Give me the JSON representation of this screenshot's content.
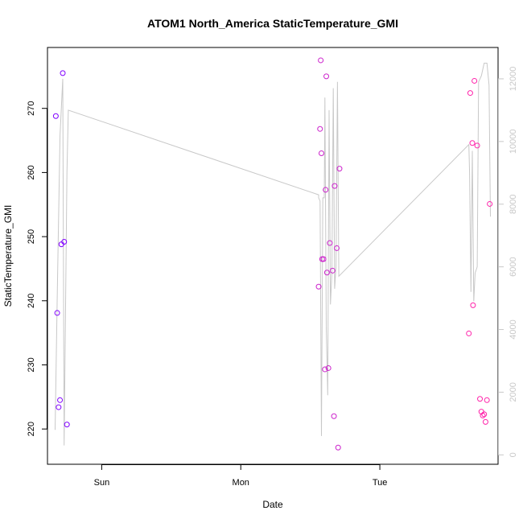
{
  "chart_data": {
    "type": "scatter",
    "title": "ATOM1 North_America StaticTemperature_GMI",
    "xlabel": "Date",
    "ylabel": "StaticTemperature_GMI",
    "x_ticks": [
      {
        "label": "Sun",
        "value": 0
      },
      {
        "label": "Mon",
        "value": 1
      },
      {
        "label": "Tue",
        "value": 2
      }
    ],
    "xlim": [
      -0.39,
      2.85
    ],
    "ylim": [
      214.5,
      279.5
    ],
    "y_ticks": [
      220,
      230,
      240,
      250,
      260,
      270
    ],
    "y2lim": [
      -300,
      13000
    ],
    "y2_ticks": [
      0,
      2000,
      4000,
      6000,
      8000,
      10000,
      12000
    ],
    "series": [
      {
        "kind": "points",
        "color": "#8000ff",
        "points": [
          {
            "x": -0.33,
            "y": 268.8
          },
          {
            "x": -0.32,
            "y": 238.1
          },
          {
            "x": -0.31,
            "y": 223.4
          },
          {
            "x": -0.3,
            "y": 224.5
          },
          {
            "x": -0.29,
            "y": 248.8
          },
          {
            "x": -0.28,
            "y": 275.5
          },
          {
            "x": -0.27,
            "y": 249.2
          },
          {
            "x": -0.25,
            "y": 220.7
          }
        ]
      },
      {
        "kind": "points",
        "color": "#cc22cc",
        "points": [
          {
            "x": 1.56,
            "y": 242.2
          },
          {
            "x": 1.57,
            "y": 266.8
          },
          {
            "x": 1.575,
            "y": 277.5
          },
          {
            "x": 1.58,
            "y": 263.0
          },
          {
            "x": 1.585,
            "y": 246.5
          },
          {
            "x": 1.595,
            "y": 246.5
          },
          {
            "x": 1.605,
            "y": 229.3
          },
          {
            "x": 1.61,
            "y": 257.3
          },
          {
            "x": 1.615,
            "y": 275.0
          },
          {
            "x": 1.62,
            "y": 244.4
          },
          {
            "x": 1.63,
            "y": 229.5
          },
          {
            "x": 1.64,
            "y": 249.0
          },
          {
            "x": 1.66,
            "y": 244.7
          },
          {
            "x": 1.67,
            "y": 222.0
          },
          {
            "x": 1.675,
            "y": 257.9
          },
          {
            "x": 1.69,
            "y": 248.2
          },
          {
            "x": 1.7,
            "y": 217.1
          },
          {
            "x": 1.71,
            "y": 260.6
          }
        ]
      },
      {
        "kind": "points",
        "color": "#ff22aa",
        "points": [
          {
            "x": 2.64,
            "y": 234.9
          },
          {
            "x": 2.65,
            "y": 272.4
          },
          {
            "x": 2.665,
            "y": 264.6
          },
          {
            "x": 2.67,
            "y": 239.3
          },
          {
            "x": 2.68,
            "y": 274.3
          },
          {
            "x": 2.7,
            "y": 264.2
          },
          {
            "x": 2.72,
            "y": 224.7
          },
          {
            "x": 2.73,
            "y": 222.7
          },
          {
            "x": 2.74,
            "y": 222.1
          },
          {
            "x": 2.75,
            "y": 222.3
          },
          {
            "x": 2.76,
            "y": 221.1
          },
          {
            "x": 2.77,
            "y": 224.5
          },
          {
            "x": 2.79,
            "y": 255.1
          }
        ]
      },
      {
        "kind": "line",
        "axis": "right",
        "color": "#c8c8c8",
        "points": [
          {
            "x": -0.335,
            "y": 800
          },
          {
            "x": -0.32,
            "y": 5000
          },
          {
            "x": -0.3,
            "y": 10200
          },
          {
            "x": -0.28,
            "y": 12000
          },
          {
            "x": -0.27,
            "y": 300
          },
          {
            "x": -0.25,
            "y": 9000
          },
          {
            "x": -0.24,
            "y": 11000
          },
          {
            "x": 1.56,
            "y": 8300
          },
          {
            "x": 1.56,
            "y": 8200
          },
          {
            "x": 1.57,
            "y": 8100
          },
          {
            "x": 1.58,
            "y": 600
          },
          {
            "x": 1.59,
            "y": 8200
          },
          {
            "x": 1.6,
            "y": 8200
          },
          {
            "x": 1.605,
            "y": 11400
          },
          {
            "x": 1.615,
            "y": 4000
          },
          {
            "x": 1.625,
            "y": 1900
          },
          {
            "x": 1.635,
            "y": 11000
          },
          {
            "x": 1.645,
            "y": 4800
          },
          {
            "x": 1.655,
            "y": 5800
          },
          {
            "x": 1.665,
            "y": 11700
          },
          {
            "x": 1.675,
            "y": 5300
          },
          {
            "x": 1.685,
            "y": 6000
          },
          {
            "x": 1.695,
            "y": 11900
          },
          {
            "x": 1.705,
            "y": 5700
          },
          {
            "x": 2.64,
            "y": 9900
          },
          {
            "x": 2.645,
            "y": 9000
          },
          {
            "x": 2.655,
            "y": 5200
          },
          {
            "x": 2.665,
            "y": 9700
          },
          {
            "x": 2.675,
            "y": 4900
          },
          {
            "x": 2.685,
            "y": 5800
          },
          {
            "x": 2.7,
            "y": 6000
          },
          {
            "x": 2.71,
            "y": 11900
          },
          {
            "x": 2.73,
            "y": 12100
          },
          {
            "x": 2.75,
            "y": 12500
          },
          {
            "x": 2.77,
            "y": 12500
          },
          {
            "x": 2.785,
            "y": 11800
          },
          {
            "x": 2.795,
            "y": 7600
          }
        ]
      }
    ]
  }
}
